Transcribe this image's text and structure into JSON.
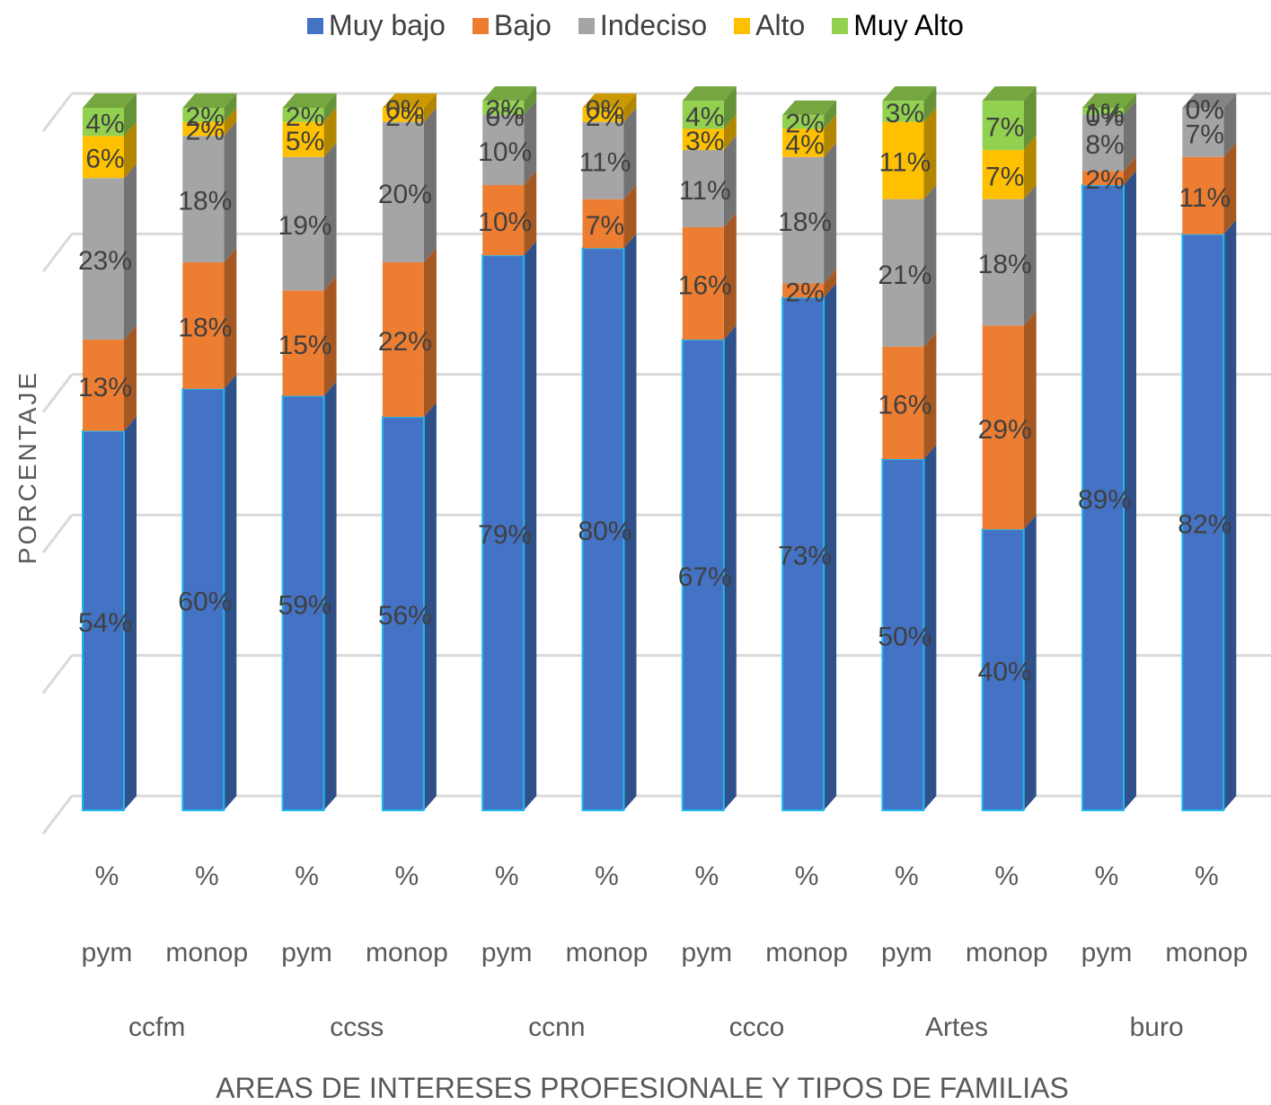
{
  "chart_data": {
    "type": "bar",
    "stacked": true,
    "three_d": true,
    "xlabel": "AREAS DE INTERESES PROFESIONALE Y TIPOS DE FAMILIAS",
    "ylabel": "PORCENTAJE",
    "ylim": [
      0,
      100
    ],
    "grid": true,
    "legend_position": "top",
    "categories": [
      {
        "unit": "%",
        "family": "pym",
        "area": "ccfm"
      },
      {
        "unit": "%",
        "family": "monop",
        "area": ""
      },
      {
        "unit": "%",
        "family": "pym",
        "area": "ccss"
      },
      {
        "unit": "%",
        "family": "monop",
        "area": ""
      },
      {
        "unit": "%",
        "family": "pym",
        "area": "ccnn"
      },
      {
        "unit": "%",
        "family": "monop",
        "area": ""
      },
      {
        "unit": "%",
        "family": "pym",
        "area": "ccco"
      },
      {
        "unit": "%",
        "family": "monop",
        "area": ""
      },
      {
        "unit": "%",
        "family": "pym",
        "area": "Artes"
      },
      {
        "unit": "%",
        "family": "monop",
        "area": ""
      },
      {
        "unit": "%",
        "family": "pym",
        "area": "buro"
      },
      {
        "unit": "%",
        "family": "monop",
        "area": ""
      }
    ],
    "areas": [
      "ccfm",
      "ccss",
      "ccnn",
      "ccco",
      "Artes",
      "buro"
    ],
    "series": [
      {
        "name": "Muy bajo",
        "color": "#4472C4",
        "values": [
          54,
          60,
          59,
          56,
          79,
          80,
          67,
          73,
          50,
          40,
          89,
          82
        ],
        "labels": [
          "54%",
          "60%",
          "59%",
          "56%",
          "79%",
          "80%",
          "67%",
          "73%",
          "50%",
          "40%",
          "89%",
          "82%"
        ]
      },
      {
        "name": "Bajo",
        "color": "#ED7D31",
        "values": [
          13,
          18,
          15,
          22,
          10,
          7,
          16,
          2,
          16,
          29,
          2,
          11
        ],
        "labels": [
          "13%",
          "18%",
          "15%",
          "22%",
          "10%",
          "7%",
          "16%",
          "2%",
          "16%",
          "29%",
          "2%",
          "11%"
        ]
      },
      {
        "name": "Indeciso",
        "color": "#A5A5A5",
        "values": [
          23,
          18,
          19,
          20,
          10,
          11,
          11,
          18,
          21,
          18,
          8,
          7
        ],
        "labels": [
          "23%",
          "18%",
          "19%",
          "20%",
          "10%",
          "11%",
          "11%",
          "18%",
          "21%",
          "18%",
          "8%",
          "7%"
        ]
      },
      {
        "name": "Alto",
        "color": "#FFC000",
        "values": [
          6,
          2,
          5,
          2,
          0,
          2,
          3,
          4,
          11,
          7,
          0,
          0
        ],
        "labels": [
          "6%",
          "2%",
          "5%",
          "2%",
          "0%",
          "2%",
          "3%",
          "4%",
          "11%",
          "7%",
          "0%",
          "0%"
        ]
      },
      {
        "name": "Muy Alto",
        "color": "#92D050",
        "values": [
          4,
          2,
          2,
          0,
          2,
          0,
          4,
          2,
          3,
          7,
          1,
          0
        ],
        "labels": [
          "4%",
          "2%",
          "2%",
          "0%",
          "2%",
          "0%",
          "4%",
          "2%",
          "3%",
          "7%",
          "1%",
          "0%"
        ]
      }
    ]
  }
}
